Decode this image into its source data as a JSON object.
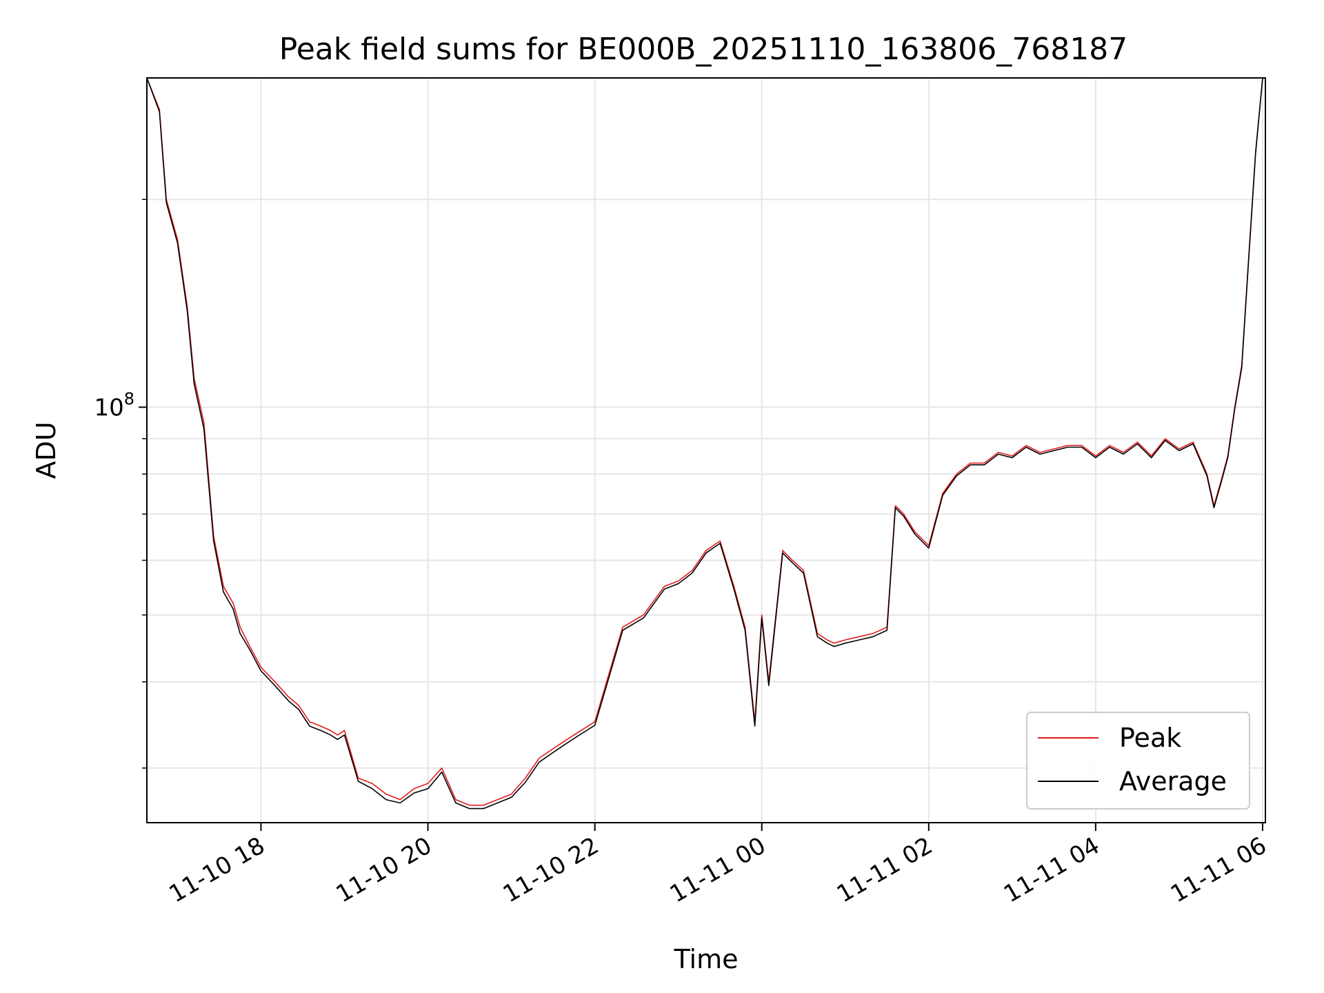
{
  "chart_data": {
    "type": "line",
    "title": "Peak field sums for BE000B_20251110_163806_768187",
    "xlabel": "Time",
    "ylabel": "ADU",
    "y_scale": "log",
    "ylim": [
      25000000,
      300000000
    ],
    "xlim": [
      "2025-11-10 16:38",
      "2025-11-11 06:02"
    ],
    "x_ticks": [
      {
        "x": "2025-11-10 18:00",
        "label": "11-10 18"
      },
      {
        "x": "2025-11-10 20:00",
        "label": "11-10 20"
      },
      {
        "x": "2025-11-10 22:00",
        "label": "11-10 22"
      },
      {
        "x": "2025-11-11 00:00",
        "label": "11-11 00"
      },
      {
        "x": "2025-11-11 02:00",
        "label": "11-11 02"
      },
      {
        "x": "2025-11-11 04:00",
        "label": "11-11 04"
      },
      {
        "x": "2025-11-11 06:00",
        "label": "11-11 06"
      }
    ],
    "y_major_tick": {
      "value": 100000000,
      "label_base": "10",
      "label_exp": "8"
    },
    "y_minor_ticks": [
      30000000,
      40000000,
      50000000,
      60000000,
      70000000,
      80000000,
      90000000,
      200000000
    ],
    "grid": true,
    "legend_position": "lower-right",
    "series": [
      {
        "name": "Peak",
        "color": "#e41a1c",
        "x": [
          "2025-11-10 16:38",
          "2025-11-10 16:47",
          "2025-11-10 16:52",
          "2025-11-10 17:00",
          "2025-11-10 17:07",
          "2025-11-10 17:12",
          "2025-11-10 17:19",
          "2025-11-10 17:26",
          "2025-11-10 17:33",
          "2025-11-10 17:40",
          "2025-11-10 17:45",
          "2025-11-10 17:52",
          "2025-11-10 18:00",
          "2025-11-10 18:10",
          "2025-11-10 18:20",
          "2025-11-10 18:27",
          "2025-11-10 18:35",
          "2025-11-10 18:43",
          "2025-11-10 18:50",
          "2025-11-10 18:55",
          "2025-11-10 19:00",
          "2025-11-10 19:10",
          "2025-11-10 19:20",
          "2025-11-10 19:30",
          "2025-11-10 19:40",
          "2025-11-10 19:50",
          "2025-11-10 20:00",
          "2025-11-10 20:10",
          "2025-11-10 20:20",
          "2025-11-10 20:30",
          "2025-11-10 20:40",
          "2025-11-10 20:50",
          "2025-11-10 21:00",
          "2025-11-10 21:10",
          "2025-11-10 21:20",
          "2025-11-10 21:30",
          "2025-11-10 21:40",
          "2025-11-10 21:50",
          "2025-11-10 22:00",
          "2025-11-10 22:10",
          "2025-11-10 22:20",
          "2025-11-10 22:35",
          "2025-11-10 22:50",
          "2025-11-10 23:00",
          "2025-11-10 23:10",
          "2025-11-10 23:20",
          "2025-11-10 23:30",
          "2025-11-10 23:40",
          "2025-11-10 23:48",
          "2025-11-10 23:55",
          "2025-11-11 00:00",
          "2025-11-11 00:05",
          "2025-11-11 00:15",
          "2025-11-11 00:22",
          "2025-11-11 00:30",
          "2025-11-11 00:40",
          "2025-11-11 00:47",
          "2025-11-11 00:52",
          "2025-11-11 01:00",
          "2025-11-11 01:10",
          "2025-11-11 01:20",
          "2025-11-11 01:30",
          "2025-11-11 01:36",
          "2025-11-11 01:42",
          "2025-11-11 01:50",
          "2025-11-11 02:00",
          "2025-11-11 02:10",
          "2025-11-11 02:20",
          "2025-11-11 02:30",
          "2025-11-11 02:40",
          "2025-11-11 02:50",
          "2025-11-11 03:00",
          "2025-11-11 03:10",
          "2025-11-11 03:20",
          "2025-11-11 03:30",
          "2025-11-11 03:40",
          "2025-11-11 03:50",
          "2025-11-11 04:00",
          "2025-11-11 04:10",
          "2025-11-11 04:20",
          "2025-11-11 04:30",
          "2025-11-11 04:40",
          "2025-11-11 04:50",
          "2025-11-11 05:00",
          "2025-11-11 05:10",
          "2025-11-11 05:20",
          "2025-11-11 05:25",
          "2025-11-11 05:30",
          "2025-11-11 05:35",
          "2025-11-11 05:40",
          "2025-11-11 05:45",
          "2025-11-11 05:50",
          "2025-11-11 05:55",
          "2025-11-11 06:00"
        ],
        "values": [
          300000000,
          270000000,
          200000000,
          175000000,
          140000000,
          110000000,
          95000000,
          65000000,
          55000000,
          52000000,
          48000000,
          45000000,
          42000000,
          40000000,
          38000000,
          37000000,
          35000000,
          34500000,
          34000000,
          33500000,
          34000000,
          29000000,
          28500000,
          27500000,
          27000000,
          28000000,
          28500000,
          30000000,
          27000000,
          26500000,
          26500000,
          27000000,
          27500000,
          29000000,
          31000000,
          32000000,
          33000000,
          34000000,
          35000000,
          41000000,
          48000000,
          50000000,
          55000000,
          56000000,
          58000000,
          62000000,
          64000000,
          55000000,
          48000000,
          35000000,
          50000000,
          40000000,
          62000000,
          60000000,
          58000000,
          47000000,
          46000000,
          45500000,
          46000000,
          46500000,
          47000000,
          48000000,
          72000000,
          70000000,
          66000000,
          63000000,
          75000000,
          80000000,
          83000000,
          83000000,
          86000000,
          85000000,
          88000000,
          86000000,
          87000000,
          88000000,
          88000000,
          85000000,
          88000000,
          86000000,
          89000000,
          85000000,
          90000000,
          87000000,
          89000000,
          80000000,
          72000000,
          78000000,
          85000000,
          100000000,
          115000000,
          165000000,
          235000000,
          300000000
        ]
      },
      {
        "name": "Average",
        "color": "#000000",
        "x": [
          "2025-11-10 16:38",
          "2025-11-10 16:47",
          "2025-11-10 16:52",
          "2025-11-10 17:00",
          "2025-11-10 17:07",
          "2025-11-10 17:12",
          "2025-11-10 17:19",
          "2025-11-10 17:26",
          "2025-11-10 17:33",
          "2025-11-10 17:40",
          "2025-11-10 17:45",
          "2025-11-10 17:52",
          "2025-11-10 18:00",
          "2025-11-10 18:10",
          "2025-11-10 18:20",
          "2025-11-10 18:27",
          "2025-11-10 18:35",
          "2025-11-10 18:43",
          "2025-11-10 18:50",
          "2025-11-10 18:55",
          "2025-11-10 19:00",
          "2025-11-10 19:10",
          "2025-11-10 19:20",
          "2025-11-10 19:30",
          "2025-11-10 19:40",
          "2025-11-10 19:50",
          "2025-11-10 20:00",
          "2025-11-10 20:10",
          "2025-11-10 20:20",
          "2025-11-10 20:30",
          "2025-11-10 20:40",
          "2025-11-10 20:50",
          "2025-11-10 21:00",
          "2025-11-10 21:10",
          "2025-11-10 21:20",
          "2025-11-10 21:30",
          "2025-11-10 21:40",
          "2025-11-10 21:50",
          "2025-11-10 22:00",
          "2025-11-10 22:10",
          "2025-11-10 22:20",
          "2025-11-10 22:35",
          "2025-11-10 22:50",
          "2025-11-10 23:00",
          "2025-11-10 23:10",
          "2025-11-10 23:20",
          "2025-11-10 23:30",
          "2025-11-10 23:40",
          "2025-11-10 23:48",
          "2025-11-10 23:55",
          "2025-11-11 00:00",
          "2025-11-11 00:05",
          "2025-11-11 00:15",
          "2025-11-11 00:22",
          "2025-11-11 00:30",
          "2025-11-11 00:40",
          "2025-11-11 00:47",
          "2025-11-11 00:52",
          "2025-11-11 01:00",
          "2025-11-11 01:10",
          "2025-11-11 01:20",
          "2025-11-11 01:30",
          "2025-11-11 01:36",
          "2025-11-11 01:42",
          "2025-11-11 01:50",
          "2025-11-11 02:00",
          "2025-11-11 02:10",
          "2025-11-11 02:20",
          "2025-11-11 02:30",
          "2025-11-11 02:40",
          "2025-11-11 02:50",
          "2025-11-11 03:00",
          "2025-11-11 03:10",
          "2025-11-11 03:20",
          "2025-11-11 03:30",
          "2025-11-11 03:40",
          "2025-11-11 03:50",
          "2025-11-11 04:00",
          "2025-11-11 04:10",
          "2025-11-11 04:20",
          "2025-11-11 04:30",
          "2025-11-11 04:40",
          "2025-11-11 04:50",
          "2025-11-11 05:00",
          "2025-11-11 05:10",
          "2025-11-11 05:20",
          "2025-11-11 05:25",
          "2025-11-11 05:30",
          "2025-11-11 05:35",
          "2025-11-11 05:40",
          "2025-11-11 05:45",
          "2025-11-11 05:50",
          "2025-11-11 05:55",
          "2025-11-11 06:00"
        ],
        "values": [
          300000000,
          268000000,
          198000000,
          173000000,
          138000000,
          108000000,
          93000000,
          64000000,
          54000000,
          51000000,
          47000000,
          44500000,
          41500000,
          39500000,
          37500000,
          36500000,
          34500000,
          34000000,
          33500000,
          33000000,
          33500000,
          28700000,
          28000000,
          27000000,
          26700000,
          27600000,
          28000000,
          29600000,
          26700000,
          26200000,
          26200000,
          26700000,
          27200000,
          28600000,
          30600000,
          31600000,
          32600000,
          33600000,
          34600000,
          40500000,
          47500000,
          49500000,
          54500000,
          55500000,
          57500000,
          61500000,
          63500000,
          54500000,
          47500000,
          34500000,
          49500000,
          39500000,
          61500000,
          59500000,
          57500000,
          46500000,
          45500000,
          45000000,
          45500000,
          46000000,
          46500000,
          47500000,
          71500000,
          69500000,
          65500000,
          62500000,
          74500000,
          79500000,
          82500000,
          82500000,
          85500000,
          84500000,
          87500000,
          85500000,
          86500000,
          87500000,
          87500000,
          84500000,
          87500000,
          85500000,
          88500000,
          84500000,
          89500000,
          86500000,
          88500000,
          79500000,
          71500000,
          77500000,
          84500000,
          99500000,
          114000000,
          164000000,
          234000000,
          300000000
        ]
      }
    ]
  }
}
